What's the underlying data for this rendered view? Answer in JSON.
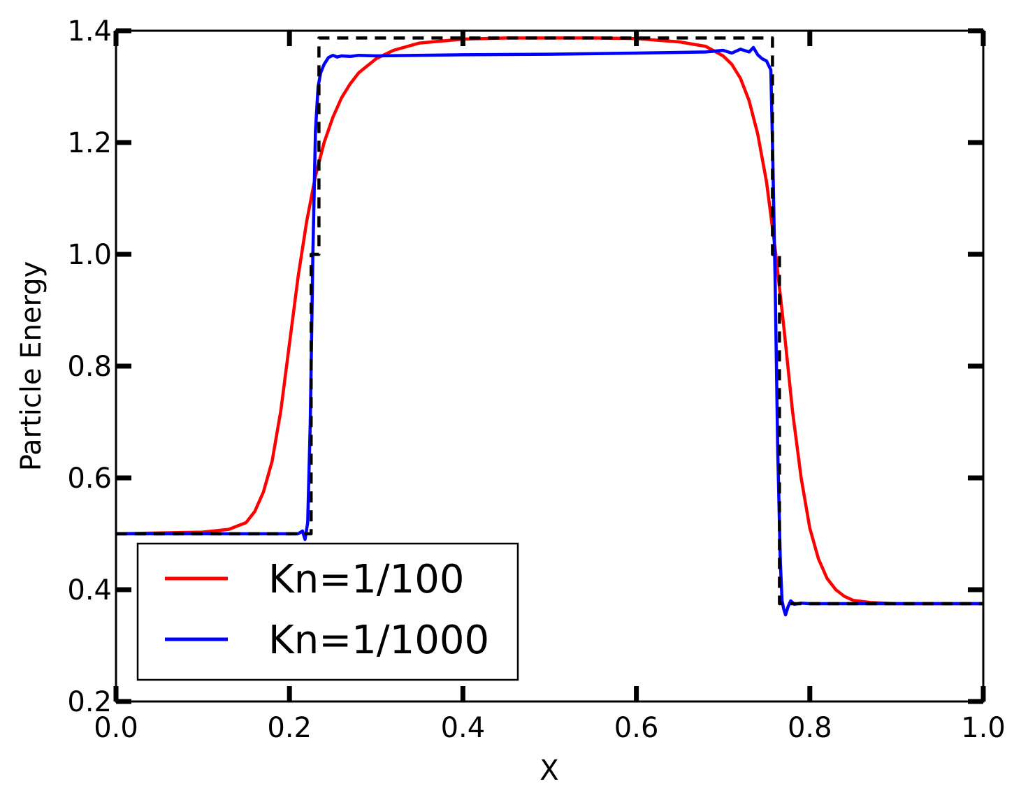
{
  "chart_data": {
    "type": "line",
    "title": "",
    "xlabel": "X",
    "ylabel": "Particle Energy",
    "xlim": [
      0.0,
      1.0
    ],
    "ylim": [
      0.2,
      1.4
    ],
    "xticks": [
      "0.0",
      "0.2",
      "0.4",
      "0.6",
      "0.8",
      "1.0"
    ],
    "yticks": [
      "0.2",
      "0.4",
      "0.6",
      "0.8",
      "1.0",
      "1.2",
      "1.4"
    ],
    "grid": false,
    "legend_position": "bottom-left",
    "series": [
      {
        "name": "Kn=1/100",
        "color": "#ff0000",
        "style": "solid",
        "x": [
          0.0,
          0.1,
          0.13,
          0.15,
          0.16,
          0.17,
          0.18,
          0.19,
          0.2,
          0.21,
          0.22,
          0.23,
          0.24,
          0.25,
          0.26,
          0.27,
          0.28,
          0.3,
          0.32,
          0.35,
          0.4,
          0.45,
          0.5,
          0.55,
          0.6,
          0.65,
          0.68,
          0.7,
          0.71,
          0.72,
          0.73,
          0.74,
          0.75,
          0.76,
          0.77,
          0.78,
          0.79,
          0.8,
          0.81,
          0.82,
          0.83,
          0.84,
          0.85,
          0.87,
          0.9,
          1.0
        ],
        "y": [
          0.5,
          0.503,
          0.508,
          0.52,
          0.54,
          0.575,
          0.63,
          0.72,
          0.84,
          0.96,
          1.06,
          1.14,
          1.2,
          1.245,
          1.28,
          1.305,
          1.325,
          1.35,
          1.365,
          1.378,
          1.385,
          1.387,
          1.387,
          1.387,
          1.386,
          1.38,
          1.372,
          1.355,
          1.34,
          1.315,
          1.275,
          1.215,
          1.13,
          1.01,
          0.87,
          0.72,
          0.6,
          0.51,
          0.455,
          0.42,
          0.4,
          0.388,
          0.381,
          0.377,
          0.375,
          0.375
        ]
      },
      {
        "name": "Kn=1/1000",
        "color": "#0000ff",
        "style": "solid",
        "x": [
          0.0,
          0.21,
          0.215,
          0.218,
          0.221,
          0.224,
          0.227,
          0.23,
          0.233,
          0.236,
          0.24,
          0.245,
          0.25,
          0.255,
          0.26,
          0.27,
          0.28,
          0.3,
          0.4,
          0.5,
          0.6,
          0.68,
          0.7,
          0.71,
          0.72,
          0.73,
          0.735,
          0.74,
          0.745,
          0.75,
          0.755,
          0.757,
          0.76,
          0.763,
          0.766,
          0.768,
          0.77,
          0.772,
          0.775,
          0.778,
          0.782,
          0.79,
          0.8,
          1.0
        ],
        "y": [
          0.5,
          0.5,
          0.505,
          0.49,
          0.52,
          0.7,
          1.0,
          1.22,
          1.3,
          1.325,
          1.34,
          1.352,
          1.356,
          1.353,
          1.355,
          1.354,
          1.356,
          1.355,
          1.357,
          1.358,
          1.36,
          1.362,
          1.365,
          1.36,
          1.367,
          1.362,
          1.37,
          1.357,
          1.35,
          1.346,
          1.33,
          1.2,
          0.95,
          0.65,
          0.45,
          0.38,
          0.365,
          0.355,
          0.37,
          0.38,
          0.374,
          0.376,
          0.375,
          0.375
        ]
      },
      {
        "name": "",
        "color": "#000000",
        "style": "dashed",
        "x": [
          0.0,
          0.225,
          0.225,
          0.234,
          0.234,
          0.757,
          0.757,
          0.765,
          0.765,
          1.0
        ],
        "y": [
          0.5,
          0.5,
          1.0,
          1.0,
          1.387,
          1.387,
          1.0,
          1.0,
          0.375,
          0.375
        ]
      }
    ]
  }
}
